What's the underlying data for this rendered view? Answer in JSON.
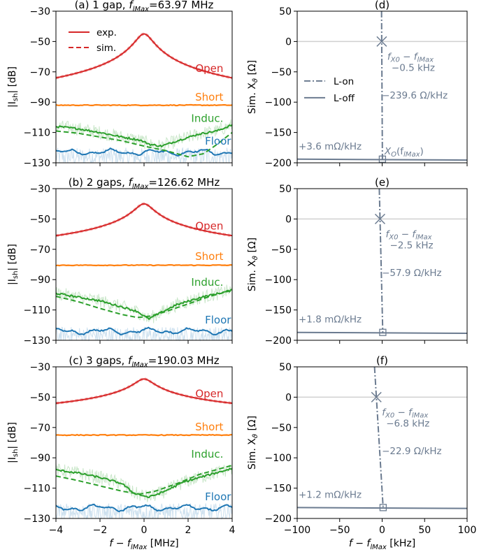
{
  "colors": {
    "open": "#d62728",
    "short": "#ff7f0e",
    "induc": "#2ca02c",
    "floor": "#1f77b4",
    "slate": "#6b7b90",
    "grid": "#d0d0d0"
  },
  "xaxis_left": {
    "label_prefix": "f",
    "label_minus": " − ",
    "label_fsym": "f",
    "label_sub": "lMax",
    "label_unit": " [MHz]",
    "ticks": [
      "−4",
      "−2",
      "0",
      "2",
      "4"
    ],
    "range": [
      -4,
      4
    ]
  },
  "xaxis_right": {
    "label_prefix": "f",
    "label_minus": " − ",
    "label_fsym": "f",
    "label_sub": "lMax",
    "label_unit": " [kHz]",
    "ticks": [
      "−100",
      "−50",
      "0",
      "50",
      "100"
    ],
    "range": [
      -100,
      100
    ]
  },
  "ylabel_left": {
    "pre": "|I",
    "sub": "sh",
    "post": "| [dB]"
  },
  "ylabel_right": {
    "pre": "Sim. X",
    "sub": "ϑ",
    "post": " [Ω]"
  },
  "legend_left": {
    "exp": "exp.",
    "sim": "sim."
  },
  "legend_right": {
    "on": "L-on",
    "off": "L-off"
  },
  "curve_labels": {
    "open": "Open",
    "short": "Short",
    "induc": "Induc.",
    "floor": "Floor"
  },
  "panels_left": [
    {
      "letter": "(a) 1 gap, ",
      "fsym": "f",
      "fsub": "lMax",
      "fval": "=63.97 MHz",
      "ylim": [
        -130,
        -30
      ],
      "yticks": [
        "−130",
        "−110",
        "−90",
        "−70",
        "−50",
        "−30"
      ],
      "open_peak": -45,
      "open_edge": -74,
      "short_level": -92,
      "induc_exp": [
        [
          -4,
          -106
        ],
        [
          -3,
          -107.5
        ],
        [
          -2,
          -110
        ],
        [
          -1,
          -113
        ],
        [
          -0.2,
          -115
        ],
        [
          0.3,
          -118
        ],
        [
          0.8,
          -119
        ],
        [
          1.6,
          -115
        ],
        [
          2.5,
          -111
        ],
        [
          3.3,
          -109
        ],
        [
          4,
          -105
        ]
      ],
      "induc_sim": [
        [
          -4,
          -109
        ],
        [
          -3,
          -110.5
        ],
        [
          -2,
          -113
        ],
        [
          -1,
          -115.5
        ],
        [
          0,
          -119
        ],
        [
          1,
          -122
        ],
        [
          2,
          -126
        ],
        [
          2.7,
          -124
        ],
        [
          3.3,
          -118
        ],
        [
          4,
          -110
        ]
      ],
      "floor_level": -123,
      "y_open_lbl": -70,
      "y_short_lbl": -89,
      "y_induc_lbl": -103,
      "y_floor_lbl": -118
    },
    {
      "letter": "(b) 2 gaps, ",
      "fsym": "f",
      "fsub": "lMax",
      "fval": "=126.62 MHz",
      "ylim": [
        -130,
        -30
      ],
      "yticks": [
        "−130",
        "−110",
        "−90",
        "−70",
        "−50",
        "−30"
      ],
      "open_peak": -40,
      "open_edge": -61,
      "short_level": -80.5,
      "induc_exp": [
        [
          -4,
          -99
        ],
        [
          -3,
          -101.5
        ],
        [
          -2,
          -104
        ],
        [
          -1,
          -108
        ],
        [
          -0.3,
          -111
        ],
        [
          0.2,
          -116
        ],
        [
          0.6,
          -113
        ],
        [
          1.4,
          -107
        ],
        [
          2.5,
          -102
        ],
        [
          4,
          -97
        ]
      ],
      "induc_sim": [
        [
          -4,
          -101
        ],
        [
          -3,
          -104.5
        ],
        [
          -2,
          -109
        ],
        [
          -1,
          -113
        ],
        [
          -0.3,
          -115
        ],
        [
          0.3,
          -114
        ],
        [
          1,
          -111
        ],
        [
          2,
          -106
        ],
        [
          3,
          -101
        ],
        [
          4,
          -97
        ]
      ],
      "floor_level": -124,
      "y_open_lbl": -57,
      "y_short_lbl": -77,
      "y_induc_lbl": -94,
      "y_floor_lbl": -119
    },
    {
      "letter": "(c) 3 gaps, ",
      "fsym": "f",
      "fsub": "lMax",
      "fval": "=190.03 MHz",
      "ylim": [
        -130,
        -30
      ],
      "yticks": [
        "−130",
        "−110",
        "−90",
        "−70",
        "−50",
        "−30"
      ],
      "open_peak": -38,
      "open_edge": -54,
      "short_level": -75,
      "induc_exp": [
        [
          -4,
          -98
        ],
        [
          -3,
          -100
        ],
        [
          -2,
          -103
        ],
        [
          -1,
          -107
        ],
        [
          -0.5,
          -113
        ],
        [
          0.2,
          -116
        ],
        [
          0.8,
          -113
        ],
        [
          1.8,
          -106
        ],
        [
          3,
          -101
        ],
        [
          4,
          -97
        ]
      ],
      "induc_sim": [
        [
          -4,
          -102
        ],
        [
          -3,
          -105
        ],
        [
          -2,
          -108.5
        ],
        [
          -1,
          -112
        ],
        [
          -0.2,
          -114
        ],
        [
          0.5,
          -112
        ],
        [
          1.5,
          -107
        ],
        [
          2.5,
          -101
        ],
        [
          3.5,
          -97
        ],
        [
          4,
          -95
        ]
      ],
      "floor_level": -123,
      "y_open_lbl": -50,
      "y_short_lbl": -72,
      "y_induc_lbl": -90,
      "y_floor_lbl": -118
    }
  ],
  "panels_right": [
    {
      "letter": "(d)",
      "ylim": [
        -200,
        50
      ],
      "yticks": [
        "−200",
        "−150",
        "−100",
        "−50",
        "0",
        "50"
      ],
      "x0_khz": -0.5,
      "slope_text": "−239.6 Ω/kHz",
      "off_level": -194,
      "off_slope_text": "+3.6 mΩ/kHz",
      "delta_text": "−0.5 kHz",
      "sym_text": true,
      "xo_label": "X",
      "xo_sub": "O",
      "xo_arg": "(f",
      "xo_arg_sub": "lMax",
      "xo_close": ")"
    },
    {
      "letter": "(e)",
      "ylim": [
        -200,
        50
      ],
      "yticks": [
        "−200",
        "−150",
        "−100",
        "−50",
        "0",
        "50"
      ],
      "x0_khz": -2.5,
      "slope_text": "−57.9 Ω/kHz",
      "off_level": -187,
      "off_slope_text": "+1.8 mΩ/kHz",
      "delta_text": "−2.5 kHz",
      "sym_text": true
    },
    {
      "letter": "(f)",
      "ylim": [
        -200,
        50
      ],
      "yticks": [
        "−200",
        "−150",
        "−100",
        "−50",
        "0",
        "50"
      ],
      "x0_khz": -6.8,
      "slope_text": "−22.9 Ω/kHz",
      "off_level": -182,
      "off_slope_text": "+1.2 mΩ/kHz",
      "delta_text": "−6.8 kHz",
      "sym_text": true
    }
  ],
  "fx0_label": {
    "f": "f",
    "sub1": "X0",
    "minus": " − ",
    "f2": "f",
    "sub2": "lMax"
  },
  "chart_data": [
    {
      "type": "line",
      "title": "(a) 1 gap, f_lMax=63.97 MHz",
      "xlabel": "f − f_lMax [MHz]",
      "ylabel": "|I_sh| [dB]",
      "xlim": [
        -4,
        4
      ],
      "ylim": [
        -130,
        -30
      ],
      "series": [
        {
          "name": "Open",
          "peak": -45,
          "edge": -74
        },
        {
          "name": "Short",
          "level": -92
        },
        {
          "name": "Induc.",
          "note": "exp. and sim."
        },
        {
          "name": "Floor",
          "level": -123
        }
      ]
    },
    {
      "type": "line",
      "title": "(b) 2 gaps, f_lMax=126.62 MHz",
      "xlabel": "f − f_lMax [MHz]",
      "ylabel": "|I_sh| [dB]",
      "xlim": [
        -4,
        4
      ],
      "ylim": [
        -130,
        -30
      ],
      "series": [
        {
          "name": "Open",
          "peak": -40,
          "edge": -61
        },
        {
          "name": "Short",
          "level": -80.5
        },
        {
          "name": "Induc."
        },
        {
          "name": "Floor",
          "level": -124
        }
      ]
    },
    {
      "type": "line",
      "title": "(c) 3 gaps, f_lMax=190.03 MHz",
      "xlabel": "f − f_lMax [MHz]",
      "ylabel": "|I_sh| [dB]",
      "xlim": [
        -4,
        4
      ],
      "ylim": [
        -130,
        -30
      ],
      "series": [
        {
          "name": "Open",
          "peak": -38,
          "edge": -54
        },
        {
          "name": "Short",
          "level": -75
        },
        {
          "name": "Induc."
        },
        {
          "name": "Floor",
          "level": -123
        }
      ]
    },
    {
      "type": "line",
      "title": "(d)",
      "xlabel": "f − f_lMax [kHz]",
      "ylabel": "Sim. X_ϑ [Ω]",
      "xlim": [
        -100,
        100
      ],
      "ylim": [
        -200,
        50
      ],
      "series": [
        {
          "name": "L-on",
          "zero_crossing_khz": -0.5,
          "slope_ohm_per_khz": -239.6
        },
        {
          "name": "L-off",
          "level": -194,
          "slope_mohm_per_khz": 3.6
        }
      ]
    },
    {
      "type": "line",
      "title": "(e)",
      "xlabel": "f − f_lMax [kHz]",
      "ylabel": "Sim. X_ϑ [Ω]",
      "xlim": [
        -100,
        100
      ],
      "ylim": [
        -200,
        50
      ],
      "series": [
        {
          "name": "L-on",
          "zero_crossing_khz": -2.5,
          "slope_ohm_per_khz": -57.9
        },
        {
          "name": "L-off",
          "level": -187,
          "slope_mohm_per_khz": 1.8
        }
      ]
    },
    {
      "type": "line",
      "title": "(f)",
      "xlabel": "f − f_lMax [kHz]",
      "ylabel": "Sim. X_ϑ [Ω]",
      "xlim": [
        -100,
        100
      ],
      "ylim": [
        -200,
        50
      ],
      "series": [
        {
          "name": "L-on",
          "zero_crossing_khz": -6.8,
          "slope_ohm_per_khz": -22.9
        },
        {
          "name": "L-off",
          "level": -182,
          "slope_mohm_per_khz": 1.2
        }
      ]
    }
  ]
}
